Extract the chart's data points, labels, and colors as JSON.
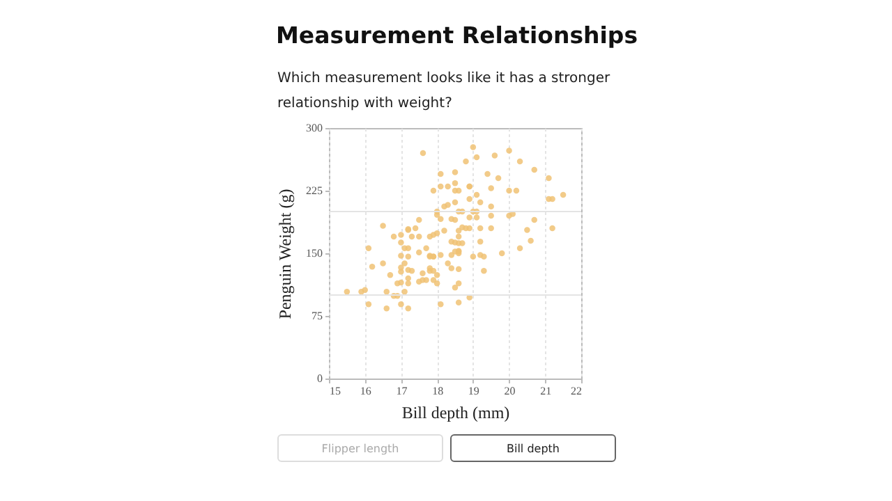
{
  "chart_data": {
    "type": "scatter",
    "title": "Measurement Relationships",
    "subtitle": "Which measurement looks like it has a stronger relationship with weight?",
    "xlabel": "Bill depth (mm)",
    "ylabel": "Penguin Weight (g)",
    "xlim": [
      15,
      22
    ],
    "xticks": [
      15,
      16,
      17,
      18,
      19,
      20,
      21,
      22
    ],
    "ylim": [
      0,
      300
    ],
    "yticks": [
      0,
      75,
      150,
      225,
      300
    ],
    "grid": "x",
    "marker": "circle",
    "ref_lines": [
      {
        "axis": "y",
        "value": 100,
        "color": "#e4e4e4"
      },
      {
        "axis": "y",
        "value": 200,
        "color": "#e4e4e4"
      }
    ],
    "annotations": [
      "Flipper length",
      "Bill depth"
    ],
    "series": [
      {
        "color": "#f0c274",
        "x": [
          17.61,
          19.0,
          19.1,
          19.6,
          20.0,
          20.3,
          18.8,
          20.7,
          21.1,
          18.1,
          18.5,
          19.4,
          19.7,
          18.3,
          18.1,
          18.5,
          17.9,
          18.5,
          18.6,
          18.9,
          18.9,
          19.5,
          20.0,
          20.2,
          21.1,
          21.2,
          21.5,
          19.1,
          18.5,
          18.2,
          18.3,
          18.9,
          19.5,
          19.2,
          18.0,
          18.0,
          18.6,
          18.7,
          19.0,
          19.1,
          20.0,
          20.1,
          17.5,
          18.4,
          18.5,
          18.9,
          19.1,
          19.5,
          18.1,
          20.7,
          16.5,
          17.0,
          17.2,
          17.2,
          17.4,
          16.8,
          17.3,
          17.5,
          17.8,
          17.9,
          18.0,
          18.2,
          18.6,
          18.7,
          18.8,
          18.9,
          19.2,
          19.5,
          20.5,
          21.2,
          18.6,
          18.4,
          18.5,
          18.6,
          18.7,
          19.2,
          20.6,
          20.3,
          19.8,
          16.1,
          17.0,
          17.1,
          17.2,
          17.7,
          17.8,
          17.8,
          17.9,
          17.9,
          18.1,
          18.4,
          18.5,
          18.6,
          18.6,
          18.6,
          19.0,
          19.2,
          19.3,
          17.0,
          17.2,
          17.5,
          15.5,
          15.9,
          16.0,
          16.1,
          16.2,
          16.5,
          16.6,
          16.6,
          16.7,
          16.8,
          16.9,
          16.9,
          17.0,
          17.0,
          17.0,
          17.1,
          17.2,
          17.1,
          17.0,
          17.2,
          17.2,
          17.2,
          17.3,
          17.5,
          17.6,
          17.6,
          17.7,
          17.8,
          17.8,
          17.9,
          17.9,
          18.0,
          18.0,
          18.1,
          18.3,
          18.4,
          18.6,
          18.5,
          18.6,
          18.6,
          18.9,
          19.3
        ],
        "values": [
          270,
          277,
          265,
          267,
          273,
          260,
          260,
          250,
          240,
          245,
          247,
          245,
          240,
          230,
          230,
          234,
          225,
          225,
          225,
          230,
          230,
          228,
          225,
          225,
          215,
          215,
          220,
          220,
          211,
          206,
          208,
          215,
          206,
          211,
          200,
          196,
          200,
          200,
          200,
          200,
          195,
          197,
          190,
          191,
          190,
          193,
          193,
          195,
          191,
          190,
          183,
          172,
          178,
          179,
          180,
          170,
          170,
          170,
          170,
          172,
          174,
          177,
          177,
          181,
          180,
          180,
          180,
          180,
          178,
          180,
          170,
          164,
          163,
          162,
          162,
          164,
          165,
          156,
          150,
          156,
          163,
          156,
          156,
          156,
          147,
          146,
          146,
          146,
          148,
          148,
          152,
          150,
          153,
          152,
          146,
          148,
          146,
          147,
          146,
          151,
          104,
          104,
          106,
          89,
          134,
          138,
          104,
          84,
          124,
          99,
          99,
          114,
          115,
          128,
          133,
          138,
          130,
          104,
          89,
          84,
          120,
          114,
          129,
          116,
          126,
          118,
          118,
          132,
          129,
          129,
          118,
          124,
          114,
          89,
          138,
          132,
          131,
          109,
          114,
          91,
          97,
          129
        ]
      }
    ]
  }
}
